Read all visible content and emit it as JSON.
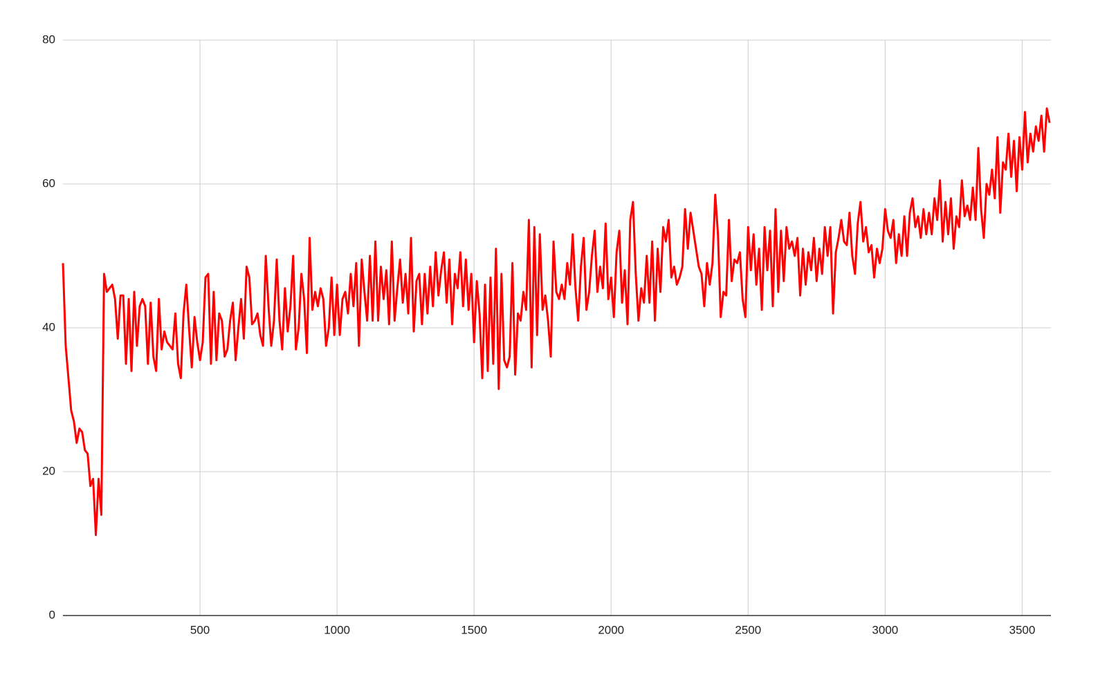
{
  "chart_data": {
    "type": "line",
    "color": "#ff0000",
    "grid": true,
    "xlim": [
      0,
      3605
    ],
    "ylim": [
      0,
      80
    ],
    "xticks": [
      500,
      1000,
      1500,
      2000,
      2500,
      3000,
      3500
    ],
    "yticks": [
      0,
      20,
      40,
      60,
      80
    ],
    "x": [
      0,
      10,
      20,
      30,
      40,
      50,
      60,
      70,
      80,
      90,
      100,
      110,
      120,
      130,
      140,
      150,
      160,
      170,
      180,
      190,
      200,
      210,
      220,
      230,
      240,
      250,
      260,
      270,
      280,
      290,
      300,
      310,
      320,
      330,
      340,
      350,
      360,
      370,
      380,
      390,
      400,
      410,
      420,
      430,
      440,
      450,
      460,
      470,
      480,
      490,
      500,
      510,
      520,
      530,
      540,
      550,
      560,
      570,
      580,
      590,
      600,
      610,
      620,
      630,
      640,
      650,
      660,
      670,
      680,
      690,
      700,
      710,
      720,
      730,
      740,
      750,
      760,
      770,
      780,
      790,
      800,
      810,
      820,
      830,
      840,
      850,
      860,
      870,
      880,
      890,
      900,
      910,
      920,
      930,
      940,
      950,
      960,
      970,
      980,
      990,
      1000,
      1010,
      1020,
      1030,
      1040,
      1050,
      1060,
      1070,
      1080,
      1090,
      1100,
      1110,
      1120,
      1130,
      1140,
      1150,
      1160,
      1170,
      1180,
      1190,
      1200,
      1210,
      1220,
      1230,
      1240,
      1250,
      1260,
      1270,
      1280,
      1290,
      1300,
      1310,
      1320,
      1330,
      1340,
      1350,
      1360,
      1370,
      1380,
      1390,
      1400,
      1410,
      1420,
      1430,
      1440,
      1450,
      1460,
      1470,
      1480,
      1490,
      1500,
      1510,
      1520,
      1530,
      1540,
      1550,
      1560,
      1570,
      1580,
      1590,
      1600,
      1610,
      1620,
      1630,
      1640,
      1650,
      1660,
      1670,
      1680,
      1690,
      1700,
      1710,
      1720,
      1730,
      1740,
      1750,
      1760,
      1770,
      1780,
      1790,
      1800,
      1810,
      1820,
      1830,
      1840,
      1850,
      1860,
      1870,
      1880,
      1890,
      1900,
      1910,
      1920,
      1930,
      1940,
      1950,
      1960,
      1970,
      1980,
      1990,
      2000,
      2010,
      2020,
      2030,
      2040,
      2050,
      2060,
      2070,
      2080,
      2090,
      2100,
      2110,
      2120,
      2130,
      2140,
      2150,
      2160,
      2170,
      2180,
      2190,
      2200,
      2210,
      2220,
      2230,
      2240,
      2250,
      2260,
      2270,
      2280,
      2290,
      2300,
      2310,
      2320,
      2330,
      2340,
      2350,
      2360,
      2370,
      2380,
      2390,
      2400,
      2410,
      2420,
      2430,
      2440,
      2450,
      2460,
      2470,
      2480,
      2490,
      2500,
      2510,
      2520,
      2530,
      2540,
      2550,
      2560,
      2570,
      2580,
      2590,
      2600,
      2610,
      2620,
      2630,
      2640,
      2650,
      2660,
      2670,
      2680,
      2690,
      2700,
      2710,
      2720,
      2730,
      2740,
      2750,
      2760,
      2770,
      2780,
      2790,
      2800,
      2810,
      2820,
      2830,
      2840,
      2850,
      2860,
      2870,
      2880,
      2890,
      2900,
      2910,
      2920,
      2930,
      2940,
      2950,
      2960,
      2970,
      2980,
      2990,
      3000,
      3010,
      3020,
      3030,
      3040,
      3050,
      3060,
      3070,
      3080,
      3090,
      3100,
      3110,
      3120,
      3130,
      3140,
      3150,
      3160,
      3170,
      3180,
      3190,
      3200,
      3210,
      3220,
      3230,
      3240,
      3250,
      3260,
      3270,
      3280,
      3290,
      3300,
      3310,
      3320,
      3330,
      3340,
      3350,
      3360,
      3370,
      3380,
      3390,
      3400,
      3410,
      3420,
      3430,
      3440,
      3450,
      3460,
      3470,
      3480,
      3490,
      3500,
      3510,
      3520,
      3530,
      3540,
      3550,
      3560,
      3570,
      3580,
      3590,
      3600
    ],
    "values": [
      49,
      37.5,
      33,
      28.5,
      27,
      24,
      26,
      25.5,
      23,
      22.5,
      18,
      19,
      11.2,
      19,
      14,
      47.5,
      45,
      45.5,
      46,
      44,
      38.5,
      44.5,
      44.5,
      35,
      44,
      34,
      45,
      37.5,
      43,
      44,
      43,
      35,
      43.5,
      36,
      34,
      44,
      37,
      39.5,
      38,
      37.5,
      37,
      42,
      35,
      33,
      42,
      46,
      40,
      34.5,
      41.5,
      38,
      35.5,
      38,
      47,
      47.5,
      35,
      45,
      35.5,
      42,
      41,
      36,
      37,
      41,
      43.5,
      35.5,
      40,
      44,
      38.5,
      48.5,
      47,
      40.5,
      41,
      42,
      39,
      37.5,
      50,
      43,
      37.5,
      41,
      49.5,
      41,
      37,
      45.5,
      39.5,
      43,
      50,
      37,
      40,
      47.5,
      44,
      36.5,
      52.5,
      42.5,
      45,
      43,
      45.5,
      44,
      37.5,
      40,
      47,
      39,
      46,
      39,
      44,
      45,
      42,
      47.5,
      43,
      49,
      37.5,
      49.5,
      45,
      41,
      50,
      41,
      52,
      41,
      48.5,
      44,
      48,
      40.5,
      52,
      41,
      45.5,
      49.5,
      43.5,
      47.5,
      42,
      52.5,
      39.5,
      46.5,
      47.5,
      40.5,
      47.5,
      42,
      48.5,
      43,
      50.5,
      44.5,
      48,
      50.5,
      43.5,
      49.5,
      40.5,
      47.5,
      45.5,
      50.5,
      43,
      49.5,
      42.5,
      47.5,
      38,
      46.5,
      42,
      33,
      46,
      34,
      47,
      35,
      51,
      31.5,
      47.5,
      35.5,
      34.5,
      36,
      49,
      33.5,
      42,
      41,
      45,
      42.5,
      55,
      34.5,
      54,
      39,
      53,
      42.5,
      44.5,
      41,
      36,
      52,
      45,
      44,
      46,
      44,
      49,
      46,
      53,
      45.5,
      41,
      48.5,
      52.5,
      42.5,
      45,
      50,
      53.5,
      45,
      48.5,
      45.5,
      54.5,
      44,
      47,
      41.5,
      50.5,
      53.5,
      43.5,
      48,
      40.5,
      55,
      57.5,
      47.5,
      41,
      45.5,
      43.5,
      50,
      43.5,
      52,
      41,
      51,
      45,
      54,
      52,
      55,
      47,
      48.5,
      46,
      47,
      48.5,
      56.5,
      51,
      56,
      53.5,
      51,
      48.5,
      47.5,
      43,
      49,
      46,
      49,
      58.5,
      53,
      41.5,
      45,
      44.5,
      55,
      46.5,
      49.5,
      49,
      50.5,
      44,
      41.5,
      54,
      48,
      53,
      46,
      51,
      42.5,
      54,
      48,
      53.5,
      43,
      56.5,
      45,
      53.5,
      46.5,
      54,
      51,
      52,
      50,
      52.5,
      44.5,
      51,
      46,
      50.5,
      48,
      52.5,
      46.5,
      51,
      47.5,
      54,
      50,
      54,
      42,
      50.5,
      52.5,
      55,
      52,
      51.5,
      56,
      50,
      47.5,
      54.5,
      57.5,
      52,
      54,
      50.5,
      51.5,
      47,
      51,
      49,
      51,
      56.5,
      53.5,
      52.5,
      55,
      49,
      53,
      50,
      55.5,
      50,
      56,
      58,
      54,
      55.5,
      52.5,
      56.5,
      53,
      56,
      53,
      58,
      55,
      60.5,
      52,
      57.5,
      53,
      58,
      51,
      55.5,
      54,
      60.5,
      55.5,
      57,
      55,
      59.5,
      55,
      65,
      56.5,
      52.5,
      60,
      58.5,
      62,
      58,
      66.5,
      56,
      63,
      62,
      67,
      61,
      66,
      59,
      66.5,
      62,
      70,
      63,
      67,
      64.5,
      68,
      66,
      69.5,
      64.5,
      70.5,
      68.5
    ]
  }
}
